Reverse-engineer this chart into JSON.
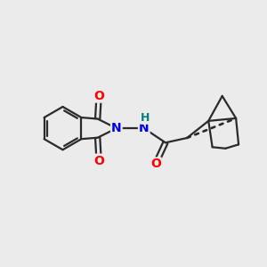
{
  "bg_color": "#ebebeb",
  "bond_color": "#2a2a2a",
  "N_color": "#0000ee",
  "O_color": "#ff0000",
  "H_color": "#008080",
  "line_width": 1.6,
  "font_size_atom": 10,
  "xlim": [
    0,
    10
  ],
  "ylim": [
    0,
    10
  ]
}
